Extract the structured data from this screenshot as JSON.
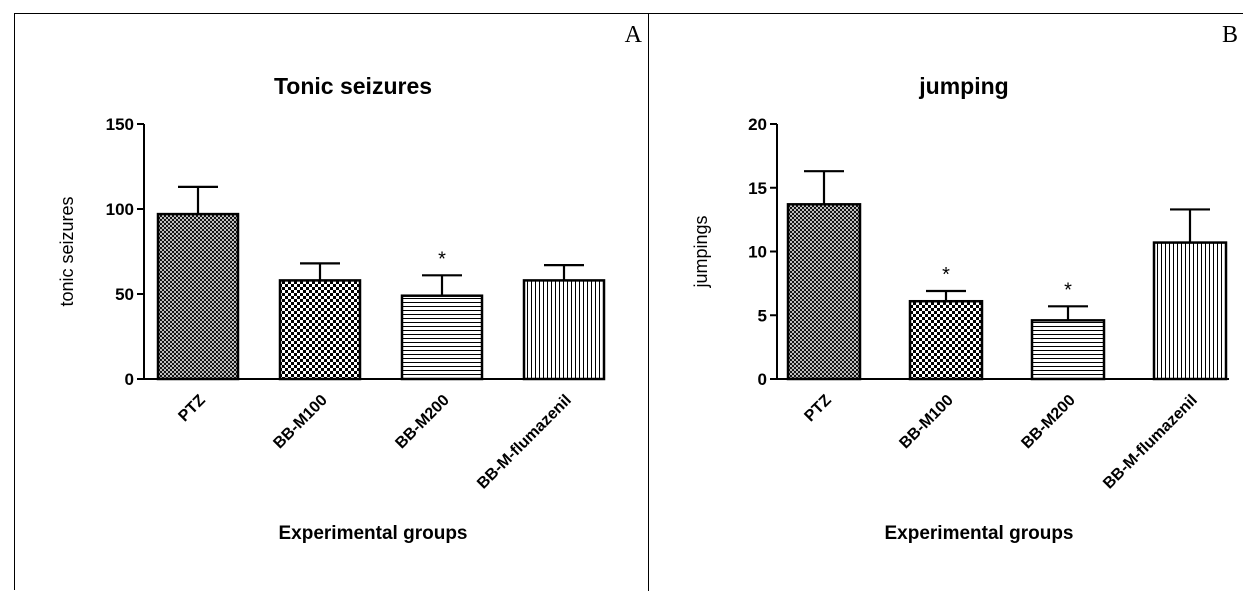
{
  "panels": [
    {
      "letter": "A",
      "chart_data": {
        "type": "bar",
        "title": "Tonic seizures",
        "xlabel": "Experimental groups",
        "ylabel": "tonic seizures",
        "categories": [
          "PTZ",
          "BB-M100",
          "BB-M200",
          "BB-M-flumazenil"
        ],
        "values": [
          97,
          58,
          49,
          58
        ],
        "errors": [
          16,
          10,
          12,
          9
        ],
        "significance": [
          "",
          "",
          "*",
          ""
        ],
        "patterns": [
          "crosshatch",
          "checker",
          "horizontal",
          "vertical"
        ],
        "ylim": [
          0,
          150
        ],
        "yticks": [
          "0",
          "50",
          "100",
          "150"
        ],
        "ytick_values": [
          0,
          50,
          100,
          150
        ]
      }
    },
    {
      "letter": "B",
      "chart_data": {
        "type": "bar",
        "title": "jumping",
        "xlabel": "Experimental groups",
        "ylabel": "jumpings",
        "categories": [
          "PTZ",
          "BB-M100",
          "BB-M200",
          "BB-M-flumazenil"
        ],
        "values": [
          13.7,
          6.1,
          4.6,
          10.7
        ],
        "errors": [
          2.6,
          0.8,
          1.1,
          2.6
        ],
        "significance": [
          "",
          "*",
          "*",
          ""
        ],
        "patterns": [
          "crosshatch",
          "checker",
          "horizontal",
          "vertical"
        ],
        "ylim": [
          0,
          20
        ],
        "yticks": [
          "0",
          "5",
          "10",
          "15",
          "20"
        ],
        "ytick_values": [
          0,
          5,
          10,
          15,
          20
        ]
      }
    }
  ]
}
